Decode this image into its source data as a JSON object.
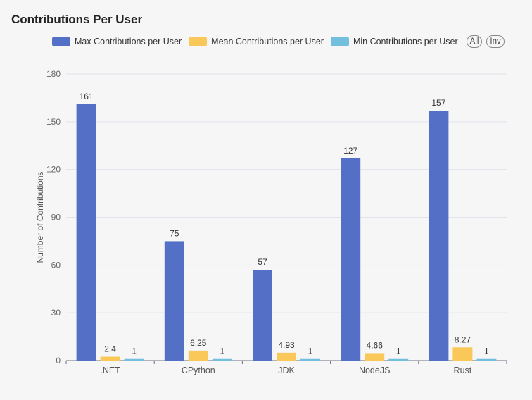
{
  "chart_data": {
    "type": "bar",
    "title": "Contributions Per User",
    "ylabel": "Number of Contributions",
    "xlabel": "",
    "ylim": [
      0,
      180
    ],
    "yticks": [
      0,
      30,
      60,
      90,
      120,
      150,
      180
    ],
    "categories": [
      ".NET",
      "CPython",
      "JDK",
      "NodeJS",
      "Rust"
    ],
    "series": [
      {
        "name": "Max Contributions per User",
        "color": "#5470c6",
        "values": [
          161,
          75,
          57,
          127,
          157
        ],
        "labels": [
          "161",
          "75",
          "57",
          "127",
          "157"
        ]
      },
      {
        "name": "Mean Contributions per User",
        "color": "#fac858",
        "values": [
          2.4,
          6.25,
          4.93,
          4.66,
          8.27
        ],
        "labels": [
          "2.4",
          "6.25",
          "4.93",
          "4.66",
          "8.27"
        ]
      },
      {
        "name": "Min Contributions per User",
        "color": "#73c0de",
        "values": [
          1,
          1,
          1,
          1,
          1
        ],
        "labels": [
          "1",
          "1",
          "1",
          "1",
          "1"
        ]
      }
    ],
    "grid": true,
    "legend_position": "top-right"
  },
  "legend_controls": {
    "all_label": "All",
    "inverse_label": "Inv"
  }
}
